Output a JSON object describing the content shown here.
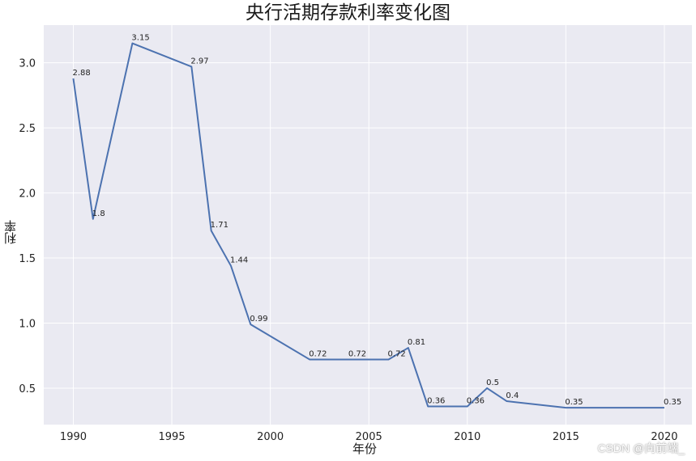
{
  "page": {
    "watermark": "CSDN @向前端_"
  },
  "chart_data": {
    "type": "line",
    "title": "央行活期存款利率变化图",
    "xlabel": "年份",
    "ylabel": "利率",
    "x": [
      1990,
      1991,
      1993,
      1996,
      1997,
      1998,
      1999,
      2002,
      2004,
      2006,
      2007,
      2008,
      2010,
      2011,
      2012,
      2015,
      2020
    ],
    "series": [
      {
        "values": [
          2.88,
          1.8,
          3.15,
          2.97,
          1.71,
          1.44,
          0.99,
          0.72,
          0.72,
          0.72,
          0.81,
          0.36,
          0.36,
          0.5,
          0.4,
          0.35,
          0.35
        ]
      }
    ],
    "data_labels": [
      "2.88",
      "1.8",
      "3.15",
      "2.97",
      "1.71",
      "1.44",
      "0.99",
      "0.72",
      "0.72",
      "0.72",
      "0.81",
      "0.36",
      "0.36",
      "0.5",
      "0.4",
      "0.35",
      "0.35"
    ],
    "xlim": [
      1988.5,
      2021.4
    ],
    "ylim": [
      0.22,
      3.29
    ],
    "xticks": [
      1990,
      1995,
      2000,
      2005,
      2010,
      2015,
      2020
    ],
    "xtick_labels": [
      "1990",
      "1995",
      "2000",
      "2005",
      "2010",
      "2015",
      "2020"
    ],
    "yticks": [
      0.5,
      1.0,
      1.5,
      2.0,
      2.5,
      3.0
    ],
    "ytick_labels": [
      "0.5",
      "1.0",
      "1.5",
      "2.0",
      "2.5",
      "3.0"
    ],
    "grid": true,
    "colors": {
      "line": "#4c72b0",
      "background": "#eaeaf2",
      "grid": "#ffffff"
    }
  }
}
